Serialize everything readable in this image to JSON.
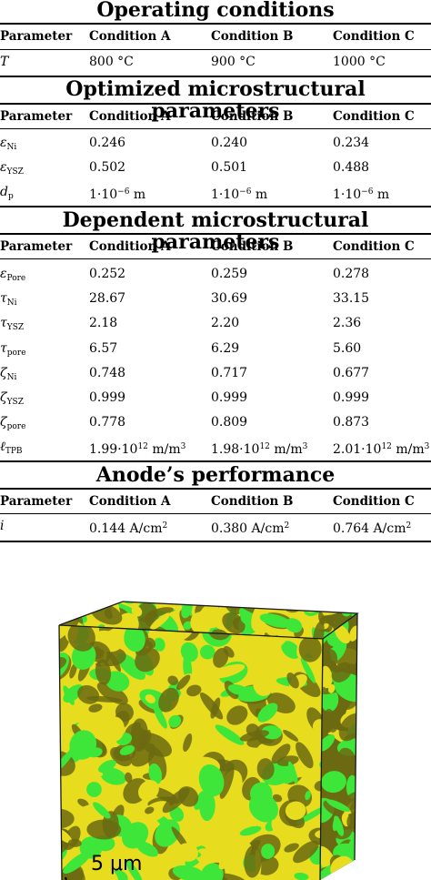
{
  "sections": {
    "operating": {
      "title": "Operating conditions",
      "header": [
        "Parameter",
        "Condition A",
        "Condition B",
        "Condition C"
      ],
      "rows": [
        {
          "symbol": "T",
          "sub": "",
          "values": [
            "800 °C",
            "900 °C",
            "1000 °C"
          ]
        }
      ]
    },
    "optimized": {
      "title": "Optimized microstructural parameters",
      "header": [
        "Parameter",
        "Condition A",
        "Condition B",
        "Condition C"
      ],
      "rows": [
        {
          "symbol": "ε",
          "sub": "Ni",
          "values": [
            "0.246",
            "0.240",
            "0.234"
          ]
        },
        {
          "symbol": "ε",
          "sub": "YSZ",
          "values": [
            "0.502",
            "0.501",
            "0.488"
          ]
        },
        {
          "symbol": "d",
          "sub": "p",
          "values": [
            "1·10",
            "1·10",
            "1·10"
          ],
          "sup": "−6",
          "unit": " m"
        }
      ]
    },
    "dependent": {
      "title": "Dependent microstructural parameters",
      "header": [
        "Parameter",
        "Condition A",
        "Condition B",
        "Condition C"
      ],
      "rows": [
        {
          "symbol": "ε",
          "sub": "Pore",
          "values": [
            "0.252",
            "0.259",
            "0.278"
          ]
        },
        {
          "symbol": "τ",
          "sub": "Ni",
          "values": [
            "28.67",
            "30.69",
            "33.15"
          ]
        },
        {
          "symbol": "τ",
          "sub": "YSZ",
          "values": [
            "2.18",
            "2.20",
            "2.36"
          ]
        },
        {
          "symbol": "τ",
          "sub": "pore",
          "values": [
            "6.57",
            "6.29",
            "5.60"
          ]
        },
        {
          "symbol": "ζ",
          "sub": "Ni",
          "values": [
            "0.748",
            "0.717",
            "0.677"
          ]
        },
        {
          "symbol": "ζ",
          "sub": "YSZ",
          "values": [
            "0.999",
            "0.999",
            "0.999"
          ]
        },
        {
          "symbol": "ζ",
          "sub": "pore",
          "values": [
            "0.778",
            "0.809",
            "0.873"
          ]
        },
        {
          "symbol": "ℓ",
          "sub": "TPB",
          "values": [
            "1.99·10",
            "1.98·10",
            "2.01·10"
          ],
          "sup": "12",
          "unit": " m/m",
          "unit_sup": "3"
        }
      ]
    },
    "performance": {
      "title": "Anode’s performance",
      "header": [
        "Parameter",
        "Condition A",
        "Condition B",
        "Condition C"
      ],
      "rows": [
        {
          "symbol": "i",
          "sub": "",
          "values": [
            "0.144 A/cm",
            "0.380 A/cm",
            "0.764 A/cm"
          ],
          "unit_sup": "2"
        }
      ]
    }
  },
  "figure": {
    "scale_bar_label": "5 μm",
    "colors": {
      "ysz": "#e8dc1e",
      "ni": "#3ee63a",
      "dark": "#6b6a12",
      "edge": "#1a1a1a"
    }
  }
}
